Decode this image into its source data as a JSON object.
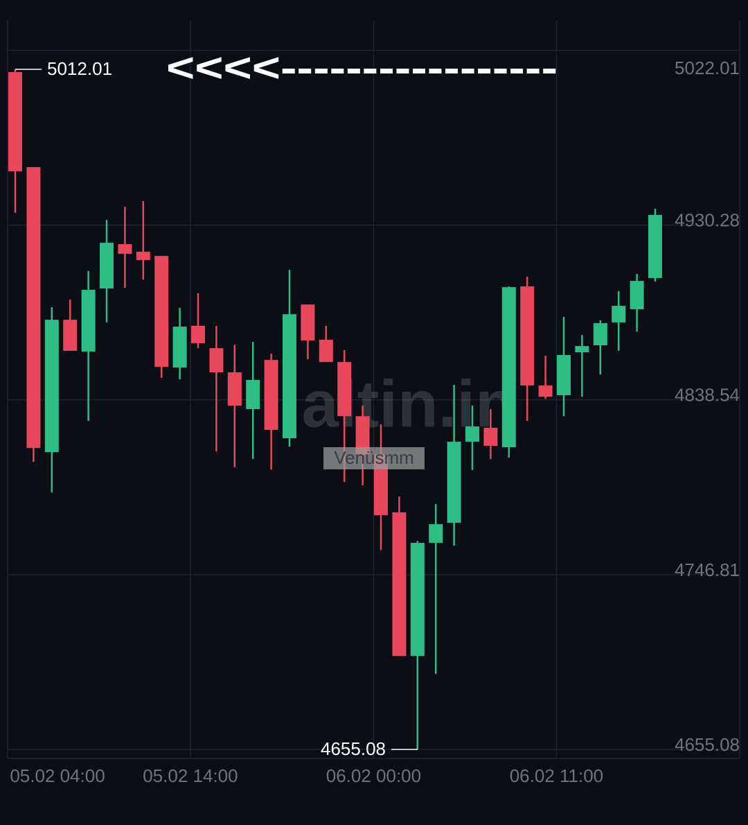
{
  "chart_data": {
    "type": "candlestick",
    "categories": [
      null,
      null,
      null,
      null,
      null,
      null,
      null,
      null,
      null,
      null,
      null,
      null,
      null,
      null,
      null,
      null,
      null,
      null,
      null,
      null,
      null,
      null,
      null,
      null,
      null,
      null,
      null,
      null,
      null,
      null,
      null,
      null,
      null,
      null,
      null,
      null
    ],
    "open": [
      5010.6,
      4960.7,
      4811.1,
      4880.6,
      4863.9,
      4897.0,
      4920.3,
      4916.3,
      4914.1,
      4855.5,
      4877.4,
      4865.7,
      4853.0,
      4833.7,
      4859.5,
      4818.4,
      4888.6,
      4870.1,
      4858.4,
      4830.0,
      4810.0,
      4779.5,
      4704.1,
      4763.5,
      4774.0,
      4816.6,
      4823.9,
      4813.7,
      4898.1,
      4846.1,
      4841.0,
      4863.5,
      4867.2,
      4879.2,
      4886.1,
      4902.5
    ],
    "high": [
      5012.01,
      4960.7,
      4887.2,
      4891.2,
      4906.1,
      4933.0,
      4939.9,
      4942.9,
      4914.1,
      4886.8,
      4894.5,
      4877.4,
      4867.5,
      4869.0,
      4862.8,
      4906.8,
      4888.6,
      4877.4,
      4864.6,
      4835.5,
      4825.7,
      4787.8,
      4764.5,
      4783.8,
      4846.4,
      4835.5,
      4833.7,
      4898.1,
      4903.2,
      4861.7,
      4882.1,
      4872.6,
      4880.3,
      4895.6,
      4904.6,
      4938.9
    ],
    "low": [
      4936.7,
      4806.0,
      4790.0,
      4864.3,
      4827.5,
      4879.2,
      4897.4,
      4901.7,
      4850.1,
      4849.3,
      4865.7,
      4811.5,
      4803.1,
      4807.5,
      4802.0,
      4814.0,
      4859.9,
      4858.4,
      4795.5,
      4793.7,
      4759.8,
      4704.1,
      4655.08,
      4694.7,
      4762.0,
      4801.7,
      4807.5,
      4808.2,
      4827.5,
      4839.1,
      4830.0,
      4840.2,
      4851.9,
      4864.3,
      4874.4,
      4900.6
    ],
    "close": [
      4958.5,
      4813.3,
      4880.6,
      4864.3,
      4896.3,
      4921.0,
      4915.2,
      4911.9,
      4855.9,
      4877.0,
      4868.3,
      4853.0,
      4835.5,
      4849.0,
      4822.8,
      4883.5,
      4869.7,
      4858.4,
      4830.0,
      4810.0,
      4778.0,
      4704.1,
      4763.5,
      4773.3,
      4816.6,
      4824.6,
      4814.4,
      4897.7,
      4846.1,
      4840.2,
      4862.1,
      4866.8,
      4878.8,
      4887.9,
      4901.0,
      4935.6
    ],
    "up_color": "#2ebd85",
    "down_color": "#e9475b",
    "ylim": [
      4650.35,
      5037.5
    ],
    "yticks": [
      5022.01,
      4930.28,
      4838.54,
      4746.81,
      4655.08
    ],
    "xticks": [
      {
        "value": -0.42,
        "label": "05.02 04:00"
      },
      {
        "value": 9.58,
        "label": "05.02 14:00"
      },
      {
        "value": 19.6,
        "label": "06.02 00:00"
      },
      {
        "value": 29.6,
        "label": "06.02 11:00"
      }
    ],
    "grid": true,
    "high_marker": 5012.01,
    "low_marker": 4655.08,
    "annotation": "<<<<-----------------",
    "watermark": "altin.in",
    "user_label": "Venüsmm"
  }
}
